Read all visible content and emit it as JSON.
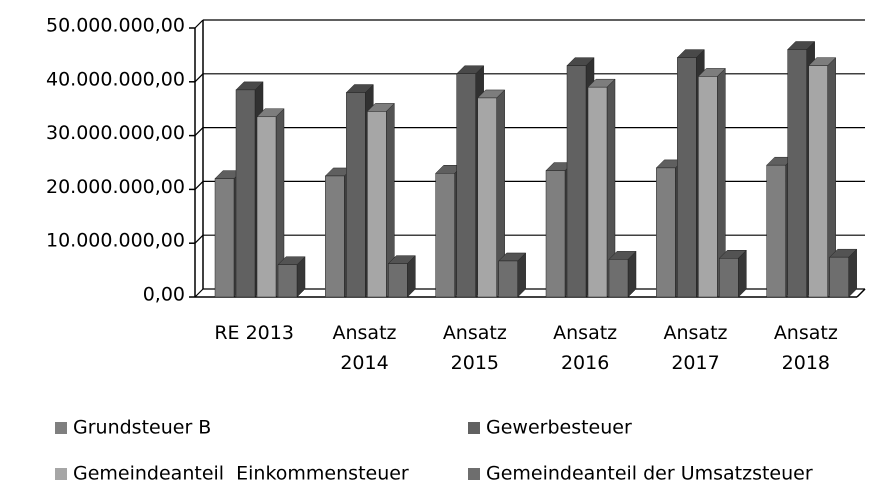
{
  "chart_data": {
    "type": "bar3d",
    "categories": [
      "RE 2013",
      "Ansatz 2014",
      "Ansatz 2015",
      "Ansatz 2016",
      "Ansatz 2017",
      "Ansatz 2018"
    ],
    "series": [
      {
        "name": "Grundsteuer B",
        "color": "#7f7f7f",
        "values": [
          22000000,
          22500000,
          23000000,
          23500000,
          24000000,
          24500000
        ]
      },
      {
        "name": "Gewerbesteuer",
        "color": "#616161",
        "values": [
          38500000,
          38000000,
          41500000,
          43000000,
          44500000,
          46000000
        ]
      },
      {
        "name": "Gemeindeanteil  Einkommensteuer",
        "color": "#a6a6a6",
        "values": [
          33500000,
          34500000,
          37000000,
          39000000,
          41000000,
          43000000
        ]
      },
      {
        "name": "Gemeindeanteil der Umsatzsteuer",
        "color": "#6e6e6e",
        "values": [
          6000000,
          6200000,
          6700000,
          7000000,
          7200000,
          7400000
        ]
      }
    ],
    "ylim": [
      0,
      50000000
    ],
    "yticks": [
      {
        "value": 0,
        "label": "0,00"
      },
      {
        "value": 10000000,
        "label": "10.000.000,00"
      },
      {
        "value": 20000000,
        "label": "20.000.000,00"
      },
      {
        "value": 30000000,
        "label": "30.000.000,00"
      },
      {
        "value": 40000000,
        "label": "40.000.000,00"
      },
      {
        "value": 50000000,
        "label": "50.000.000,00"
      }
    ],
    "grid": true
  }
}
